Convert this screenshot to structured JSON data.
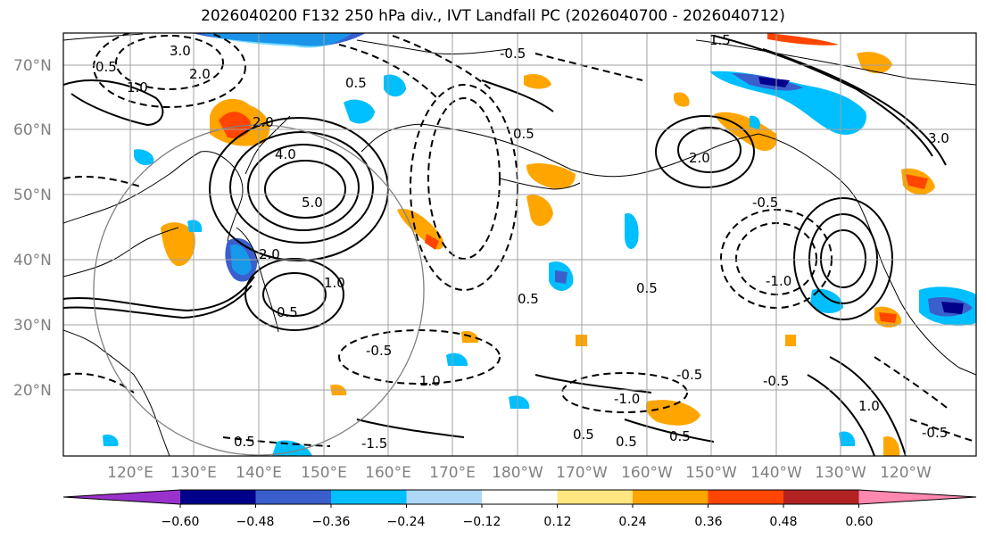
{
  "title": "2026040200 F132 250 hPa div., IVT Landfall PC (2026040700 - 2026040712)",
  "lat_labels": [
    "70°N",
    "60°N",
    "50°N",
    "40°N",
    "30°N",
    "20°N"
  ],
  "lon_labels": [
    "120°E",
    "130°E",
    "140°E",
    "150°E",
    "160°E",
    "170°E",
    "180°W",
    "170°W",
    "160°W",
    "150°W",
    "140°W",
    "130°W",
    "120°W"
  ],
  "colorbar": {
    "ticks": [
      "−0.60",
      "−0.48",
      "−0.36",
      "−0.24",
      "−0.12",
      "0.12",
      "0.24",
      "0.36",
      "0.48",
      "0.60"
    ],
    "colors": [
      "#9932cc",
      "#00008b",
      "#3a5fcd",
      "#00bfff",
      "#add8f7",
      "#ffffff",
      "#ffe680",
      "#ffa500",
      "#ff4500",
      "#b22222",
      "#ff88b0"
    ]
  },
  "contour_labels": [
    "3.0",
    "2.0",
    "0.5",
    "1.0",
    "2.0",
    "4.0",
    "5.0",
    "2.0",
    "1.0",
    "0.5",
    "0.5",
    "0.5",
    "-0.5",
    "-0.5",
    "-0.5",
    "-1.0",
    "-1.0",
    "-1.5",
    "-0.5",
    "0.5",
    "0.5",
    "1.0",
    "3.0",
    "-0.5",
    "0.5",
    "-0.5",
    "0.5",
    "0.5",
    "2.0",
    "1.0",
    "0.5",
    "1.5"
  ]
}
